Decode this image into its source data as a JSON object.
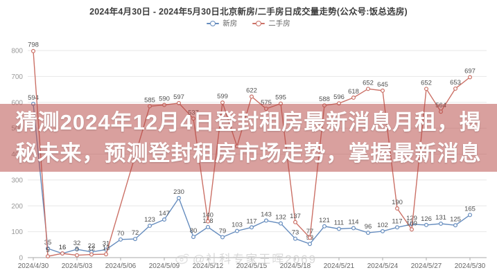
{
  "header": {
    "title": "2024年4月30日 - 2024年5月30日北京新房/二手房日成交量走势(公众号:饭总选房)"
  },
  "legend": {
    "items": [
      {
        "label": "新房",
        "color": "#658cbe"
      },
      {
        "label": "二手房",
        "color": "#cb7066"
      }
    ]
  },
  "overlay_banner": {
    "line1": "猜测2024年12月4日登封租房最新消息月租，揭",
    "line2": "秘未来，预测登封租房市场走势，掌握最新消息",
    "bg_color": "rgba(183,75,72,0.53)",
    "text_color": "#ffffff"
  },
  "watermark": {
    "icon": "weibo-icon",
    "text": "@社科专家王晖2069"
  },
  "chart_data": {
    "type": "line",
    "title": "2024年4月30日 - 2024年5月30日北京新房/二手房日成交量走势(公众号:饭总选房)",
    "legend_position": "top",
    "grid": true,
    "ylim": [
      0,
      800
    ],
    "y_tick_interval": 100,
    "x": [
      "2024/4/30",
      "2024/5/01",
      "2024/5/02",
      "2024/5/03",
      "2024/5/04",
      "2024/5/05",
      "2024/5/06",
      "2024/5/07",
      "2024/5/08",
      "2024/5/09",
      "2024/5/10",
      "2024/5/11",
      "2024/5/12",
      "2024/5/13",
      "2024/5/14",
      "2024/5/15",
      "2024/5/16",
      "2024/5/17",
      "2024/5/18",
      "2024/5/19",
      "2024/5/20",
      "2024/5/21",
      "2024/5/22",
      "2024/5/23",
      "2024/5/24",
      "2024/5/25",
      "2024/5/26",
      "2024/5/27",
      "2024/5/28",
      "2024/5/29",
      "2024/5/30"
    ],
    "x_tick_labels": [
      "2024/4/30",
      "2024/5/03",
      "2024/5/06",
      "2024/5/09",
      "2024/5/12",
      "2024/5/15",
      "2024/5/18",
      "2024/5/21",
      "2024/5/24",
      "2024/5/27",
      "2024/5/30"
    ],
    "series": [
      {
        "name": "新房",
        "color": "#658cbe",
        "values": [
          594,
          35,
          16,
          32,
          22,
          31,
          70,
          72,
          123,
          147,
          230,
          80,
          118,
          79,
          103,
          117,
          143,
          132,
          73,
          53,
          121,
          111,
          114,
          96,
          102,
          117,
          129,
          126,
          131,
          125,
          165
        ],
        "hidden_label_indices": []
      },
      {
        "name": "二手房",
        "color": "#cb7066",
        "values": [
          798,
          5,
          16,
          9,
          12,
          13,
          null,
          null,
          585,
          590,
          597,
          537,
          140,
          599,
          430,
          622,
          575,
          595,
          137,
          77,
          588,
          596,
          618,
          652,
          645,
          190,
          109,
          652,
          564,
          653,
          697
        ],
        "hidden_label_indices": [
          14
        ],
        "note": "index 14 (2024/5/14) dip is hidden behind the overlay banner, 430 is a visual estimate; indices 6-7 show no visible points (line runs straight from 13 to 585)"
      }
    ]
  }
}
